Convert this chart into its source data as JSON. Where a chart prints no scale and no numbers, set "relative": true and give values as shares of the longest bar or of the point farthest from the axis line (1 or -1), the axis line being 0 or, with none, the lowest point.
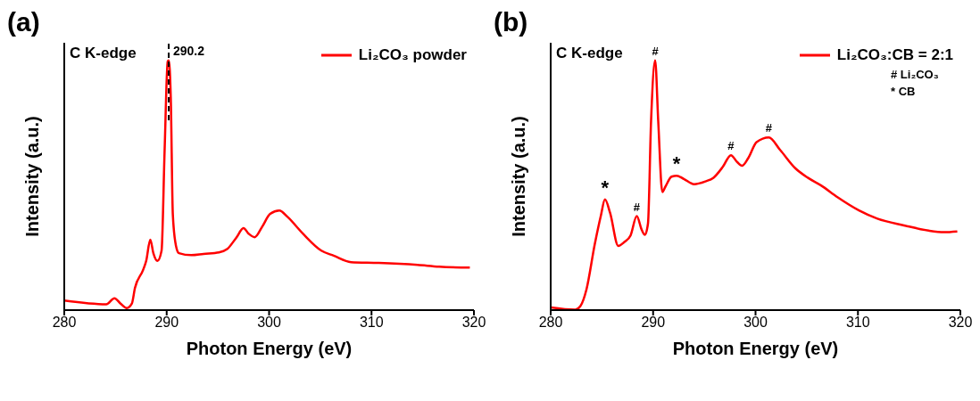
{
  "chart_data": [
    {
      "type": "line",
      "title": "(a)",
      "xlabel": "Photon Energy (eV)",
      "ylabel": "Intensity (a.u.)",
      "relative": true,
      "xlim": [
        280,
        320
      ],
      "xticks": [
        280,
        290,
        300,
        310,
        320
      ],
      "legend": "top right",
      "line_style": "solid",
      "annotations": [
        "C K-edge"
      ],
      "ref_lines": [
        {
          "axis": "x",
          "value": 290.2,
          "label": "290.2",
          "color": "#000000",
          "line_style": "dashed"
        }
      ],
      "series": [
        {
          "name": "Li₂CO₃ powder",
          "color": "#ff0000",
          "x": [
            280,
            284.1,
            284.9,
            285.5,
            286.1,
            286.6,
            286.9,
            287.7,
            288.0,
            288.4,
            288.7,
            289.1,
            289.5,
            289.8,
            290.1,
            290.2,
            290.4,
            290.6,
            290.9,
            291.2,
            292.4,
            293.6,
            295.1,
            295.9,
            296.8,
            297.5,
            298.0,
            298.6,
            299.3,
            300.1,
            301.0,
            301.8,
            303.3,
            305.1,
            306.3,
            308.0,
            310.7,
            314.5,
            316.6,
            319.6
          ],
          "values": [
            0.038,
            0.023,
            0.047,
            0.026,
            0.008,
            0.026,
            0.088,
            0.161,
            0.197,
            0.282,
            0.228,
            0.197,
            0.238,
            0.642,
            0.995,
            1.0,
            0.85,
            0.383,
            0.259,
            0.228,
            0.22,
            0.225,
            0.231,
            0.244,
            0.29,
            0.328,
            0.306,
            0.292,
            0.332,
            0.385,
            0.399,
            0.373,
            0.306,
            0.238,
            0.218,
            0.192,
            0.189,
            0.181,
            0.174,
            0.17
          ]
        }
      ]
    },
    {
      "type": "line",
      "title": "(b)",
      "xlabel": "Photon Energy (eV)",
      "ylabel": "Intensity (a.u.)",
      "relative": true,
      "xlim": [
        280,
        320
      ],
      "xticks": [
        280,
        290,
        300,
        310,
        320
      ],
      "legend": "top right",
      "line_style": "solid",
      "annotations": [
        "C K-edge",
        "# Li₂CO₃",
        "* CB",
        {
          "text": "*",
          "x": 285.3,
          "y": 0.443
        },
        {
          "text": "#",
          "x": 288.4,
          "y": 0.376
        },
        {
          "text": "#",
          "x": 290.2,
          "y": 1.0
        },
        {
          "text": "*",
          "x": 292.3,
          "y": 0.538
        },
        {
          "text": "#",
          "x": 297.6,
          "y": 0.62
        },
        {
          "text": "#",
          "x": 301.3,
          "y": 0.691
        }
      ],
      "series": [
        {
          "name": "Li₂CO₃:CB = 2:1",
          "color": "#ff0000",
          "x": [
            280,
            282.4,
            282.9,
            283.5,
            284.3,
            284.9,
            285.3,
            285.8,
            286.6,
            287.2,
            287.8,
            288.4,
            288.9,
            289.2,
            289.5,
            289.8,
            290.2,
            290.5,
            290.9,
            291.2,
            291.8,
            292.3,
            293.0,
            294.0,
            295.1,
            295.9,
            296.8,
            297.6,
            298.2,
            298.7,
            299.3,
            300.1,
            301.3,
            302.4,
            303.9,
            305.1,
            306.4,
            308.0,
            310.1,
            311.9,
            314.5,
            316.9,
            318.4,
            319.7
          ],
          "values": [
            0.011,
            0.002,
            0.016,
            0.084,
            0.263,
            0.378,
            0.443,
            0.389,
            0.257,
            0.273,
            0.299,
            0.376,
            0.32,
            0.301,
            0.347,
            0.756,
            1.0,
            0.756,
            0.473,
            0.494,
            0.534,
            0.538,
            0.525,
            0.504,
            0.515,
            0.53,
            0.573,
            0.62,
            0.593,
            0.578,
            0.609,
            0.672,
            0.691,
            0.641,
            0.567,
            0.53,
            0.499,
            0.452,
            0.399,
            0.366,
            0.339,
            0.318,
            0.312,
            0.315
          ]
        }
      ]
    }
  ]
}
